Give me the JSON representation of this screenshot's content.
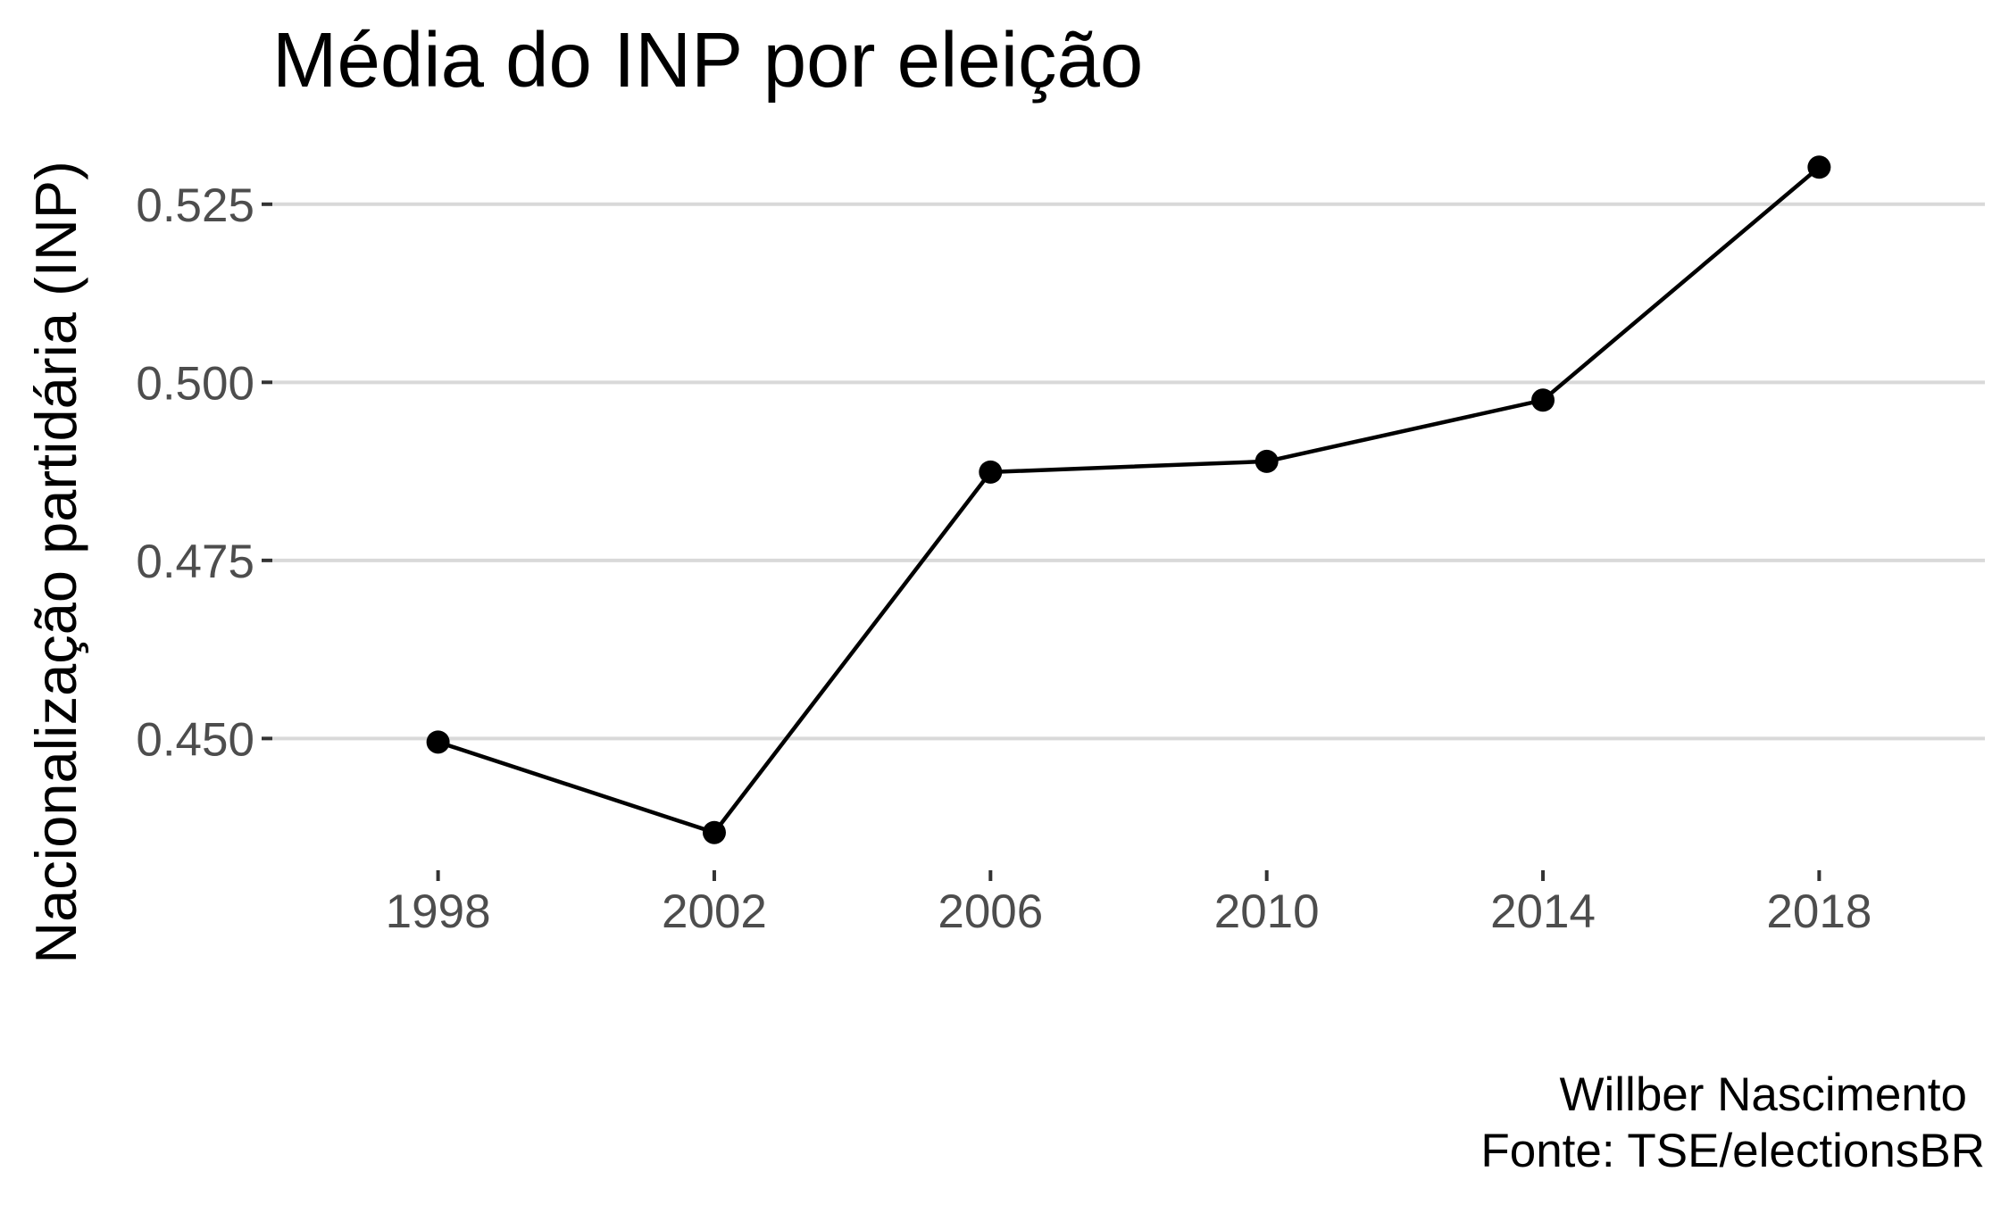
{
  "chart_data": {
    "type": "line",
    "title": "Média do INP por eleição",
    "xlabel": "",
    "ylabel": "Nacionalização partidária (INP)",
    "x": [
      1998,
      2002,
      2006,
      2010,
      2014,
      2018
    ],
    "x_tick_labels": [
      "1998",
      "2002",
      "2006",
      "2010",
      "2014",
      "2018"
    ],
    "values": [
      0.4495,
      0.4368,
      0.4874,
      0.4889,
      0.4975,
      0.5302
    ],
    "xlim": [
      1995.6,
      2020.4
    ],
    "ylim": [
      0.4315,
      0.5355
    ],
    "y_ticks": [
      0.45,
      0.475,
      0.5,
      0.525
    ],
    "y_tick_labels": [
      "0.450",
      "0.475",
      "0.500",
      "0.525"
    ],
    "caption": [
      "Willber Nascimento",
      "Fonte: TSE/electionsBR"
    ],
    "grid": "horizontal major lines only",
    "legend": "none",
    "colors": {
      "line": "#000000",
      "points": "#000000",
      "grid": "#d9d9d9",
      "tick_text": "#4d4d4d",
      "tick_mark": "#333333",
      "background": "#ffffff"
    }
  }
}
